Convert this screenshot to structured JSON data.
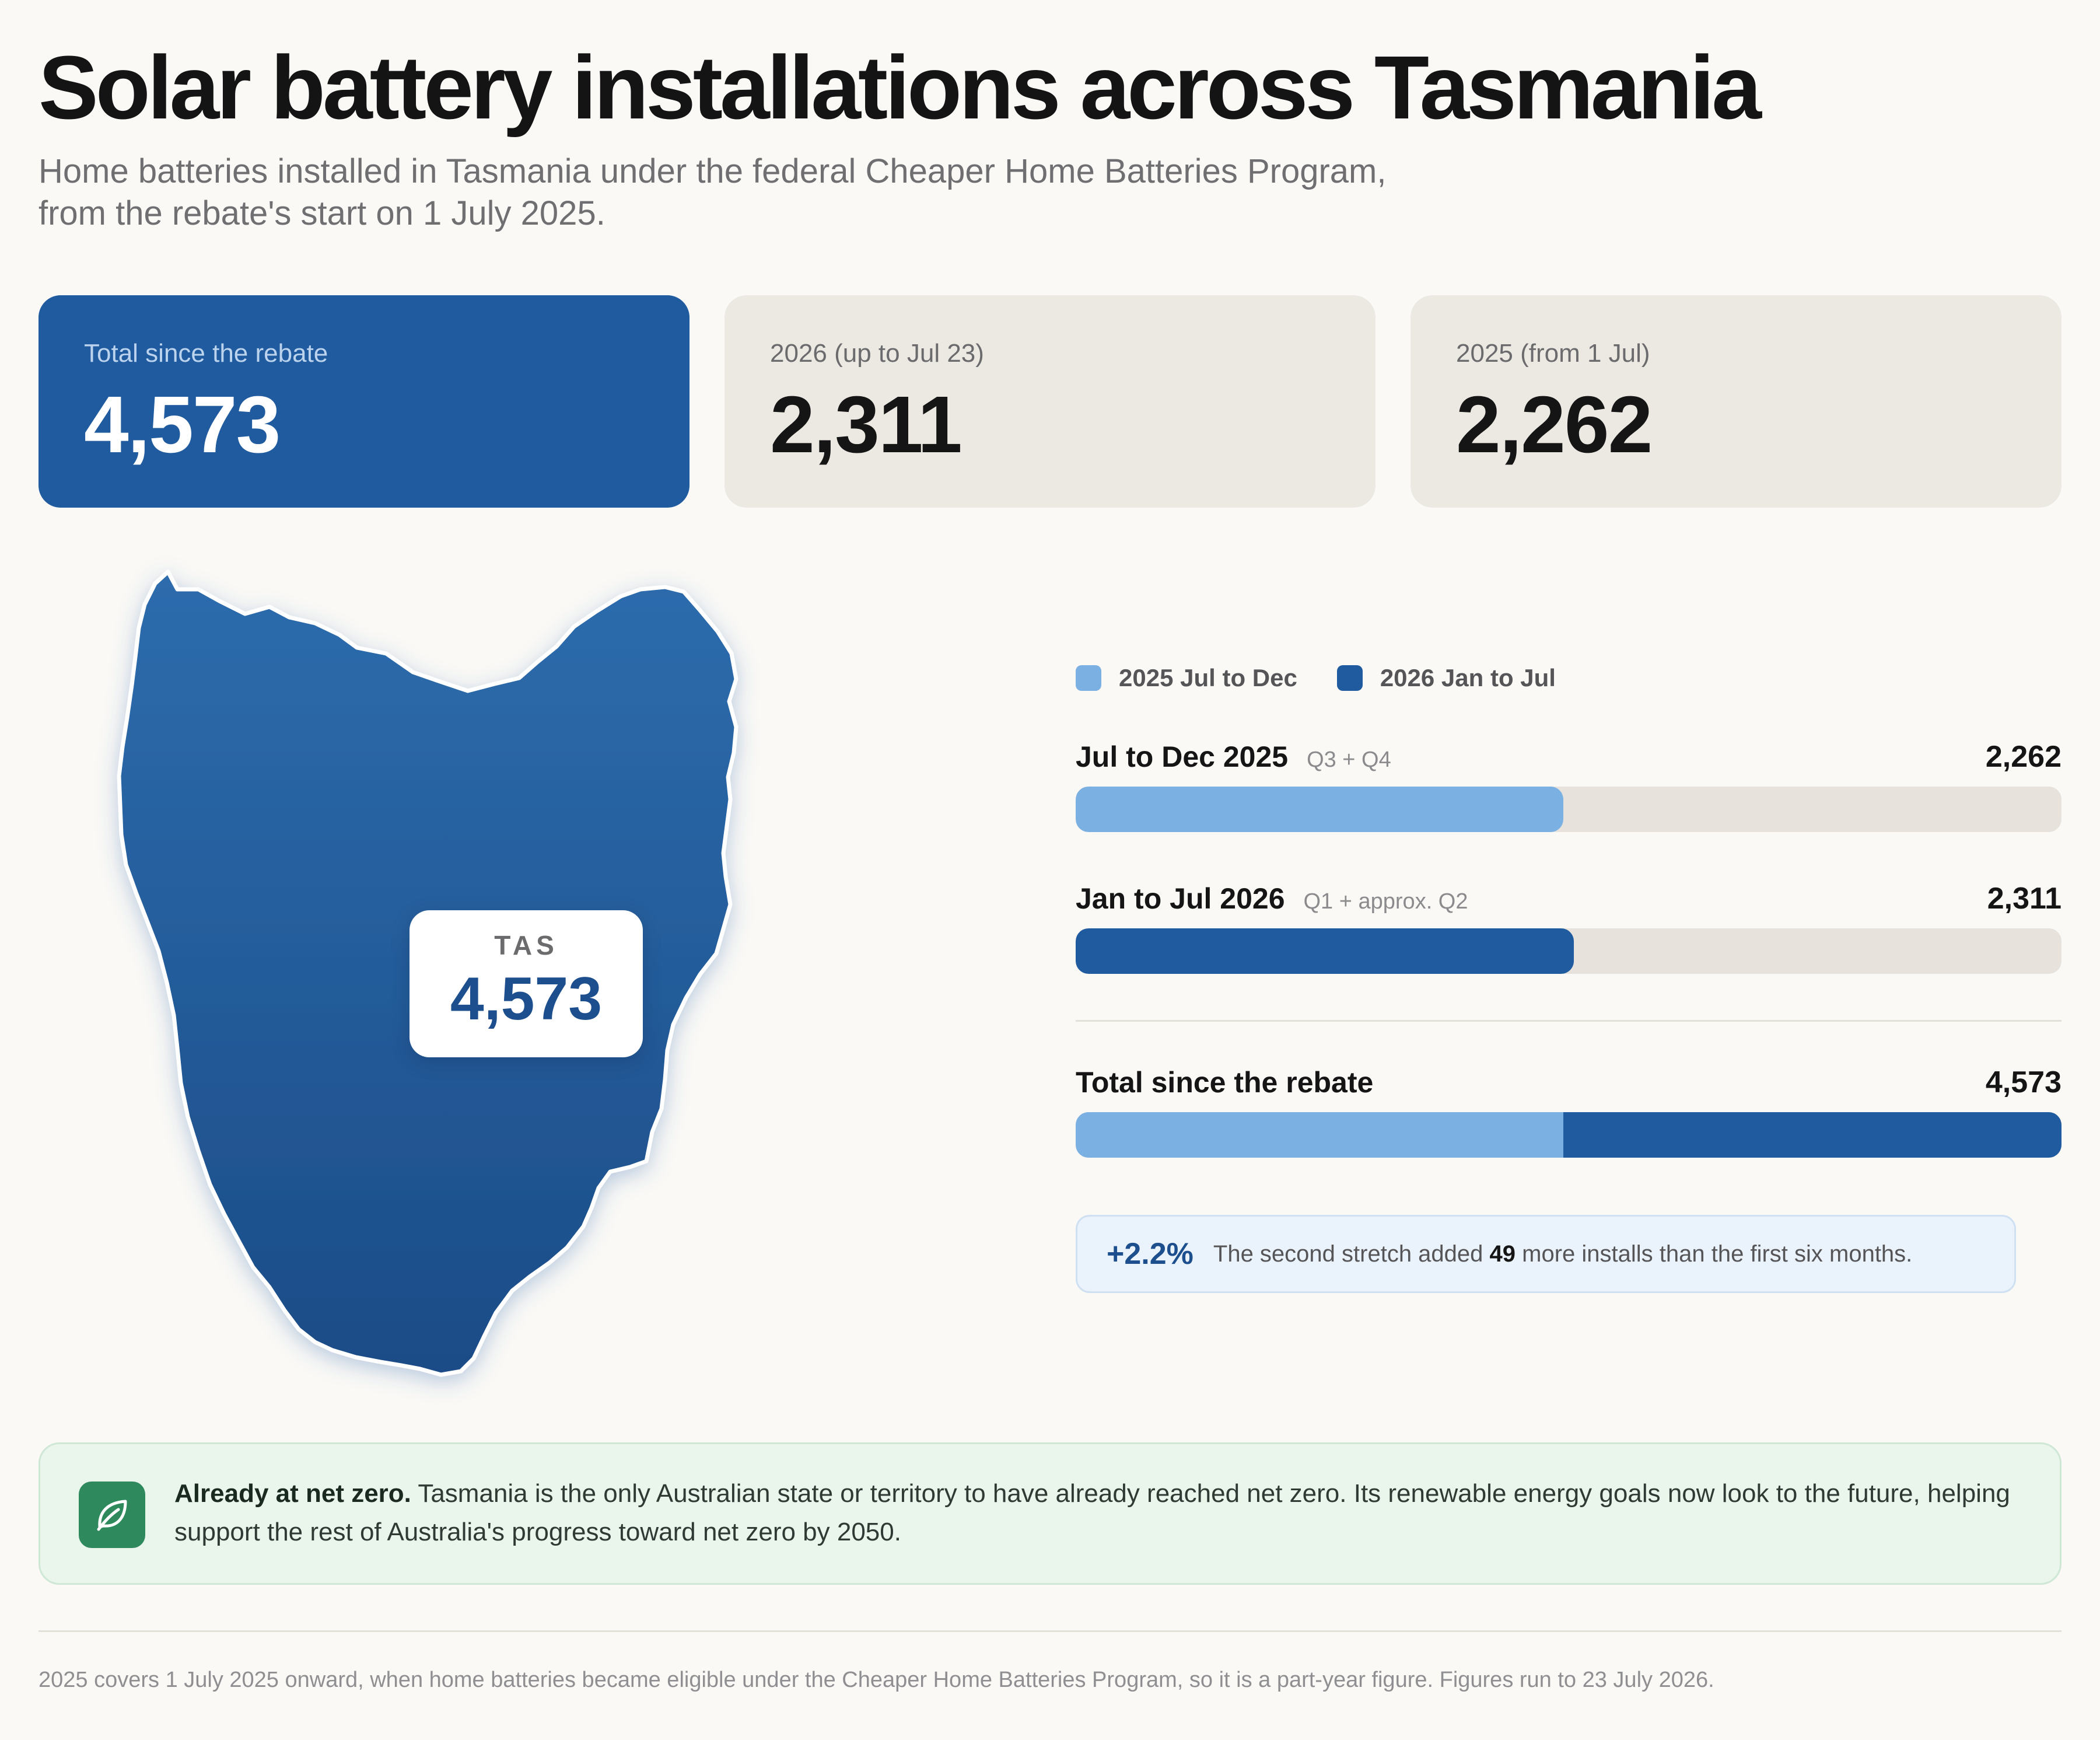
{
  "header": {
    "title": "Solar battery installations across Tasmania",
    "subtitle_line1": "Home batteries installed in Tasmania under the federal Cheaper Home Batteries Program,",
    "subtitle_line2": "from the rebate's start on 1 July 2025."
  },
  "cards": [
    {
      "label": "Total since the rebate",
      "value": "4,573"
    },
    {
      "label": "2026 (up to Jul 23)",
      "value": "2,311"
    },
    {
      "label": "2025 (from 1 Jul)",
      "value": "2,262"
    }
  ],
  "map": {
    "state_code": "TAS",
    "value": "4,573",
    "color": "#1f5b9e"
  },
  "chart_data": {
    "type": "bar",
    "orientation": "horizontal",
    "legend": [
      {
        "label": "2025  Jul to Dec",
        "color": "#7bb0e3"
      },
      {
        "label": "2026  Jan to Jul",
        "color": "#1f5b9e"
      }
    ],
    "max": 4573,
    "rows": [
      {
        "name": "Jul to Dec 2025",
        "sub": "Q3 + Q4",
        "value": 2262,
        "display": "2,262",
        "color": "#7bb0e3"
      },
      {
        "name": "Jan to Jul 2026",
        "sub": "Q1 + approx. Q2",
        "value": 2311,
        "display": "2,311",
        "color": "#1f5b9e"
      }
    ],
    "total": {
      "name": "Total since the rebate",
      "display": "4,573",
      "segments": [
        {
          "value": 2262,
          "color": "#7bb0e3"
        },
        {
          "value": 2311,
          "color": "#1f5b9e"
        }
      ]
    }
  },
  "callout": {
    "pct": "+2.2%",
    "msg_before": "The second stretch added ",
    "msg_bold": "49",
    "msg_after": " more installs than the first six months."
  },
  "netzero": {
    "icon": "leaf-icon",
    "bold": "Already at net zero.",
    "text": " Tasmania is the only Australian state or territory to have already reached net zero. Its renewable energy goals now look to the future, helping support the rest of Australia's progress toward net zero by 2050."
  },
  "footnote": "2025 covers 1 July 2025 onward, when home batteries became eligible under the Cheaper Home Batteries Program, so it is a part-year figure. Figures run to 23 July 2026."
}
